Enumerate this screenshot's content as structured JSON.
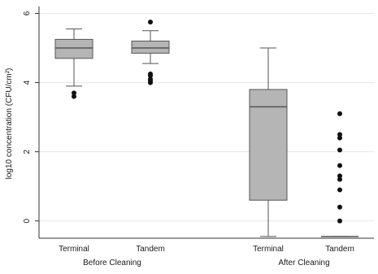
{
  "chart_data": {
    "type": "box",
    "ylabel": "log10 concentration (CFU/cm²)",
    "ylim": [
      -0.5,
      6.2
    ],
    "yticks": [
      0,
      2,
      4,
      6
    ],
    "grid": true,
    "colors": {
      "box_fill": "#b5b5b5",
      "stroke": "#555555",
      "outlier": "#111111",
      "grid": "#e6e6e6"
    },
    "groups": [
      {
        "name": "Before Cleaning",
        "boxes": [
          {
            "name": "Terminal",
            "whisker_low": 3.9,
            "q1": 4.7,
            "median": 5.0,
            "q3": 5.25,
            "whisker_high": 5.55,
            "outliers": [
              3.6,
              3.7
            ]
          },
          {
            "name": "Tandem",
            "whisker_low": 4.55,
            "q1": 4.85,
            "median": 5.0,
            "q3": 5.2,
            "whisker_high": 5.5,
            "outliers": [
              5.75,
              4.0,
              4.05,
              4.1,
              4.2,
              4.25
            ]
          }
        ]
      },
      {
        "name": "After Cleaning",
        "boxes": [
          {
            "name": "Terminal",
            "whisker_low": -0.45,
            "q1": 0.6,
            "median": 3.3,
            "q3": 3.8,
            "whisker_high": 5.0,
            "outliers": []
          },
          {
            "name": "Tandem",
            "whisker_low": -0.45,
            "q1": -0.45,
            "median": -0.45,
            "q3": -0.45,
            "whisker_high": -0.45,
            "outliers": [
              0.0,
              0.4,
              0.9,
              1.2,
              1.3,
              1.6,
              2.05,
              2.4,
              2.5,
              3.1
            ]
          }
        ]
      }
    ]
  }
}
